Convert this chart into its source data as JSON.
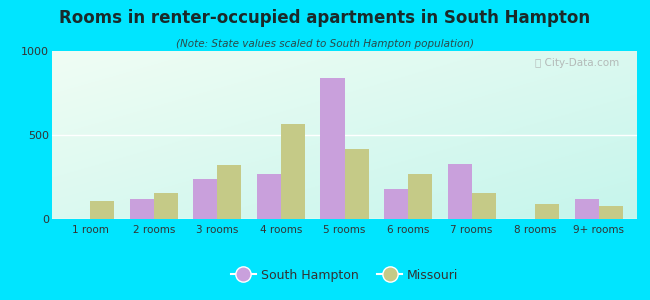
{
  "title": "Rooms in renter-occupied apartments in South Hampton",
  "subtitle": "(Note: State values scaled to South Hampton population)",
  "categories": [
    "1 room",
    "2 rooms",
    "3 rooms",
    "4 rooms",
    "5 rooms",
    "6 rooms",
    "7 rooms",
    "8 rooms",
    "9+ rooms"
  ],
  "south_hampton": [
    0,
    120,
    240,
    270,
    840,
    180,
    330,
    0,
    120
  ],
  "missouri": [
    110,
    155,
    320,
    565,
    415,
    265,
    155,
    90,
    80
  ],
  "color_sh": "#c9a0dc",
  "color_mo": "#c5ca87",
  "background_outer": "#00e5ff",
  "bg_top_left": "#f0fdf4",
  "bg_bottom_right": "#c5f5ec",
  "ylim": [
    0,
    1000
  ],
  "yticks": [
    0,
    500,
    1000
  ],
  "bar_width": 0.38,
  "legend_sh": "South Hampton",
  "legend_mo": "Missouri",
  "title_color": "#1a2a2a",
  "subtitle_color": "#2a4a4a"
}
